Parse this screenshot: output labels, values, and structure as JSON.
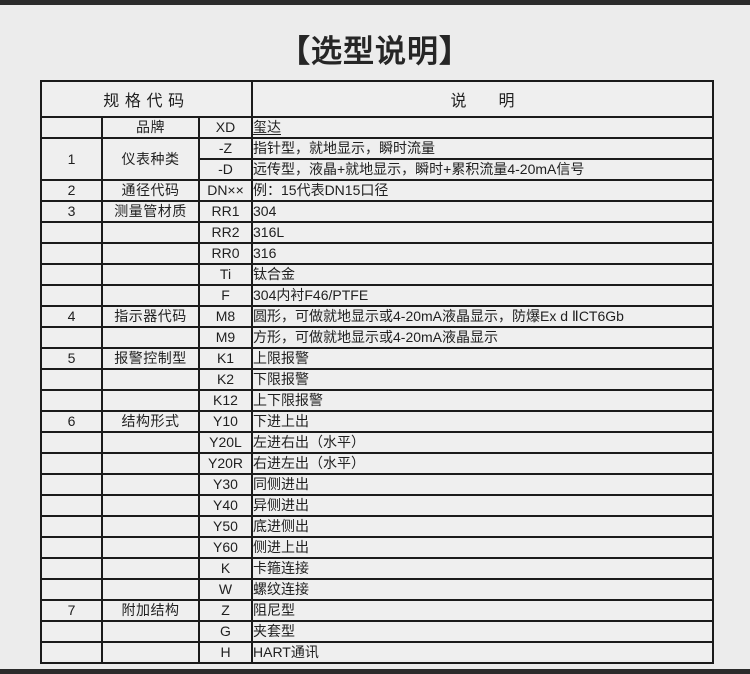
{
  "page": {
    "title": "【选型说明】",
    "colors": {
      "background": "#ececec",
      "top_bottom_bars": "#2b2b2b",
      "table_border": "#1b1b1b",
      "cell_background": "#efefef",
      "text": "#1f1f1f"
    }
  },
  "table": {
    "header": {
      "spec_code": "规格代码",
      "description": "说　　明"
    },
    "rows": [
      {
        "num": "",
        "category": "品牌",
        "code": "XD",
        "desc": "玺达"
      },
      {
        "num": "1",
        "category": "仪表种类",
        "code": "-Z",
        "desc": "指针型，就地显示，瞬时流量"
      },
      {
        "code": "-D",
        "desc": "远传型，液晶+就地显示，瞬时+累积流量4-20mA信号"
      },
      {
        "num": "2",
        "category": "通径代码",
        "code": "DN××",
        "desc": "例：15代表DN15口径"
      },
      {
        "num": "3",
        "category": "测量管材质",
        "code": "RR1",
        "desc": "304"
      },
      {
        "num": "",
        "category": "",
        "code": "RR2",
        "desc": "316L"
      },
      {
        "num": "",
        "category": "",
        "code": "RR0",
        "desc": "316"
      },
      {
        "num": "",
        "category": "",
        "code": "Ti",
        "desc": "钛合金"
      },
      {
        "num": "",
        "category": "",
        "code": "F",
        "desc": "304内衬F46/PTFE"
      },
      {
        "num": "4",
        "category": "指示器代码",
        "code": "M8",
        "desc": "圆形，可做就地显示或4-20mA液晶显示，防爆Ex d ⅡCT6Gb"
      },
      {
        "num": "",
        "category": "",
        "code": "M9",
        "desc": "方形，可做就地显示或4-20mA液晶显示"
      },
      {
        "num": "5",
        "category": "报警控制型",
        "code": "K1",
        "desc": "上限报警"
      },
      {
        "num": "",
        "category": "",
        "code": "K2",
        "desc": "下限报警"
      },
      {
        "num": "",
        "category": "",
        "code": "K12",
        "desc": "上下限报警"
      },
      {
        "num": "6",
        "category": "结构形式",
        "code": "Y10",
        "desc": "下进上出"
      },
      {
        "num": "",
        "category": "",
        "code": "Y20L",
        "desc": "左进右出（水平）"
      },
      {
        "num": "",
        "category": "",
        "code": "Y20R",
        "desc": "右进左出（水平）"
      },
      {
        "num": "",
        "category": "",
        "code": "Y30",
        "desc": "同侧进出"
      },
      {
        "num": "",
        "category": "",
        "code": "Y40",
        "desc": "异侧进出"
      },
      {
        "num": "",
        "category": "",
        "code": "Y50",
        "desc": "底进侧出"
      },
      {
        "num": "",
        "category": "",
        "code": "Y60",
        "desc": "侧进上出"
      },
      {
        "num": "",
        "category": "",
        "code": "K",
        "desc": "卡箍连接"
      },
      {
        "num": "",
        "category": "",
        "code": "W",
        "desc": "螺纹连接"
      },
      {
        "num": "7",
        "category": "附加结构",
        "code": "Z",
        "desc": "阻尼型"
      },
      {
        "num": "",
        "category": "",
        "code": "G",
        "desc": "夹套型"
      },
      {
        "num": "",
        "category": "",
        "code": "H",
        "desc": "HART通讯"
      }
    ]
  }
}
